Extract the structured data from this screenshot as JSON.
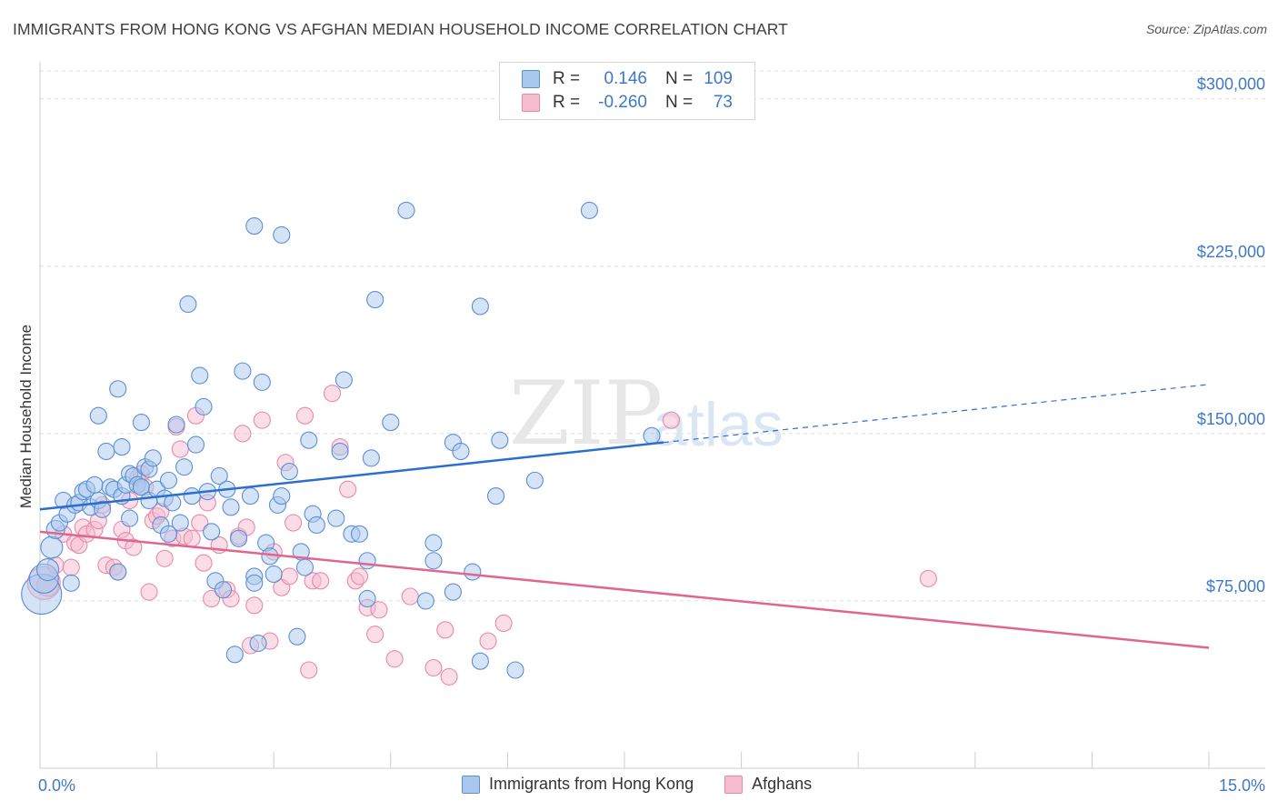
{
  "title": "IMMIGRANTS FROM HONG KONG VS AFGHAN MEDIAN HOUSEHOLD INCOME CORRELATION CHART",
  "source": "Source: ZipAtlas.com",
  "watermark": {
    "part1": "ZIP",
    "part2": "atlas"
  },
  "legend": {
    "rows": [
      {
        "r_label": "R =",
        "r_value": "0.146",
        "n_label": "N =",
        "n_value": "109"
      },
      {
        "r_label": "R =",
        "r_value": "-0.260",
        "n_label": "N =",
        "n_value": "73"
      }
    ]
  },
  "colors": {
    "blue_fill": "#a9c8ee",
    "blue_stroke": "#5b8fd6",
    "blue_line": "#2a6fcf",
    "pink_fill": "#f6bcd0",
    "pink_stroke": "#e889a8",
    "pink_line": "#e0658f",
    "grid": "#dddddd",
    "tick_text": "#3d78c9"
  },
  "chart_data": {
    "type": "scatter",
    "ylabel": "Median Household Income",
    "xlim": [
      0,
      15
    ],
    "ylim": [
      0,
      312500
    ],
    "x_tick_labels": [
      "0.0%",
      "15.0%"
    ],
    "y_ticks": [
      75000,
      150000,
      225000,
      300000
    ],
    "y_tick_labels": [
      "$75,000",
      "$150,000",
      "$225,000",
      "$300,000"
    ],
    "series": [
      {
        "name": "Immigrants from Hong Kong",
        "color": "#5b8fd6",
        "trend": {
          "x0": 0,
          "y0": 116000,
          "x1": 8.0,
          "y1": 146000,
          "dashed_to_x": 15.0,
          "dashed_to_y": 172000
        },
        "points": [
          [
            0.02,
            78000,
            22
          ],
          [
            0.05,
            85000,
            16
          ],
          [
            0.1,
            89000,
            12
          ],
          [
            0.15,
            99000,
            12
          ],
          [
            0.2,
            107000,
            10
          ],
          [
            0.25,
            110000,
            9
          ],
          [
            0.3,
            120000,
            9
          ],
          [
            0.35,
            114000,
            9
          ],
          [
            0.4,
            83000,
            9
          ],
          [
            0.45,
            118000,
            9
          ],
          [
            0.5,
            119000,
            9
          ],
          [
            0.55,
            124000,
            9
          ],
          [
            0.6,
            125000,
            9
          ],
          [
            0.65,
            117000,
            9
          ],
          [
            0.7,
            127000,
            9
          ],
          [
            0.75,
            120000,
            9
          ],
          [
            0.8,
            116000,
            9
          ],
          [
            0.85,
            142000,
            9
          ],
          [
            0.9,
            126000,
            9
          ],
          [
            0.95,
            125000,
            9
          ],
          [
            1.0,
            88000,
            9
          ],
          [
            1.05,
            122000,
            9
          ],
          [
            1.1,
            127000,
            9
          ],
          [
            1.15,
            112000,
            9
          ],
          [
            0.75,
            158000,
            9
          ],
          [
            1.0,
            170000,
            9
          ],
          [
            1.05,
            144000,
            9
          ],
          [
            1.15,
            132000,
            9
          ],
          [
            1.2,
            131000,
            9
          ],
          [
            1.25,
            127000,
            9
          ],
          [
            1.3,
            126000,
            9
          ],
          [
            1.35,
            135000,
            9
          ],
          [
            1.4,
            134000,
            9
          ],
          [
            1.3,
            126000,
            9
          ],
          [
            1.3,
            155000,
            9
          ],
          [
            1.4,
            120000,
            9
          ],
          [
            1.45,
            139000,
            9
          ],
          [
            1.5,
            125000,
            9
          ],
          [
            1.55,
            109000,
            9
          ],
          [
            1.6,
            121000,
            9
          ],
          [
            1.65,
            105000,
            9
          ],
          [
            1.65,
            129000,
            9
          ],
          [
            1.7,
            119000,
            9
          ],
          [
            1.75,
            154000,
            9
          ],
          [
            1.8,
            110000,
            9
          ],
          [
            1.85,
            135000,
            9
          ],
          [
            1.95,
            122000,
            9
          ],
          [
            1.9,
            208000,
            9
          ],
          [
            2.0,
            145000,
            9
          ],
          [
            2.05,
            176000,
            9
          ],
          [
            2.1,
            162000,
            9
          ],
          [
            2.15,
            124000,
            9
          ],
          [
            2.2,
            106000,
            9
          ],
          [
            2.25,
            84000,
            9
          ],
          [
            2.3,
            131000,
            9
          ],
          [
            2.35,
            80000,
            9
          ],
          [
            2.4,
            125000,
            9
          ],
          [
            2.45,
            117000,
            9
          ],
          [
            2.5,
            51000,
            9
          ],
          [
            2.55,
            103000,
            9
          ],
          [
            2.6,
            178000,
            9
          ],
          [
            2.7,
            122000,
            9
          ],
          [
            2.75,
            86000,
            9
          ],
          [
            2.75,
            83000,
            9
          ],
          [
            2.8,
            56000,
            9
          ],
          [
            2.85,
            173000,
            9
          ],
          [
            2.9,
            101000,
            9
          ],
          [
            2.95,
            95000,
            9
          ],
          [
            3.0,
            87000,
            9
          ],
          [
            3.05,
            118000,
            9
          ],
          [
            3.1,
            122000,
            9
          ],
          [
            3.2,
            133000,
            9
          ],
          [
            2.75,
            243000,
            9
          ],
          [
            3.3,
            59000,
            9
          ],
          [
            3.35,
            97000,
            9
          ],
          [
            3.4,
            90000,
            9
          ],
          [
            3.45,
            147000,
            9
          ],
          [
            3.5,
            114000,
            9
          ],
          [
            3.55,
            109000,
            9
          ],
          [
            3.1,
            239000,
            9
          ],
          [
            3.8,
            112000,
            9
          ],
          [
            3.85,
            142000,
            9
          ],
          [
            3.9,
            174000,
            9
          ],
          [
            4.0,
            105000,
            9
          ],
          [
            4.1,
            105000,
            9
          ],
          [
            4.2,
            93000,
            9
          ],
          [
            4.2,
            76000,
            9
          ],
          [
            4.25,
            139000,
            9
          ],
          [
            4.3,
            210000,
            9
          ],
          [
            4.5,
            155000,
            9
          ],
          [
            4.7,
            250000,
            9
          ],
          [
            4.95,
            75000,
            9
          ],
          [
            5.05,
            101000,
            9
          ],
          [
            5.05,
            93000,
            9
          ],
          [
            5.3,
            79000,
            9
          ],
          [
            5.3,
            146000,
            9
          ],
          [
            5.4,
            142000,
            9
          ],
          [
            5.55,
            88000,
            9
          ],
          [
            5.65,
            48000,
            9
          ],
          [
            5.65,
            207000,
            9
          ],
          [
            5.85,
            122000,
            9
          ],
          [
            5.9,
            147000,
            9
          ],
          [
            6.1,
            44000,
            9
          ],
          [
            6.35,
            129000,
            9
          ],
          [
            7.05,
            250000,
            9
          ],
          [
            7.85,
            149000,
            9
          ]
        ]
      },
      {
        "name": "Afghans",
        "color": "#e889a8",
        "trend": {
          "x0": 0,
          "y0": 106000,
          "x1": 15.0,
          "y1": 54000
        },
        "points": [
          [
            0.05,
            83000,
            18
          ],
          [
            0.1,
            82000,
            12
          ],
          [
            0.2,
            91000,
            9
          ],
          [
            0.3,
            105000,
            9
          ],
          [
            0.4,
            90000,
            9
          ],
          [
            0.45,
            101000,
            9
          ],
          [
            0.5,
            100000,
            9
          ],
          [
            0.55,
            108000,
            9
          ],
          [
            0.6,
            105000,
            9
          ],
          [
            0.7,
            107000,
            9
          ],
          [
            0.75,
            111000,
            9
          ],
          [
            0.8,
            118000,
            9
          ],
          [
            0.85,
            91000,
            9
          ],
          [
            0.95,
            90000,
            9
          ],
          [
            1.0,
            88000,
            9
          ],
          [
            1.05,
            107000,
            9
          ],
          [
            1.1,
            102000,
            9
          ],
          [
            1.15,
            120000,
            9
          ],
          [
            1.2,
            99000,
            9
          ],
          [
            1.25,
            130000,
            9
          ],
          [
            1.3,
            132000,
            9
          ],
          [
            1.35,
            126000,
            9
          ],
          [
            1.4,
            79000,
            9
          ],
          [
            1.45,
            111000,
            9
          ],
          [
            1.5,
            113000,
            9
          ],
          [
            1.55,
            115000,
            9
          ],
          [
            1.6,
            94000,
            9
          ],
          [
            1.7,
            103000,
            9
          ],
          [
            1.75,
            153000,
            9
          ],
          [
            1.8,
            143000,
            9
          ],
          [
            1.85,
            104000,
            9
          ],
          [
            1.95,
            103000,
            9
          ],
          [
            2.0,
            158000,
            9
          ],
          [
            2.05,
            110000,
            9
          ],
          [
            2.1,
            92000,
            9
          ],
          [
            2.15,
            119000,
            9
          ],
          [
            2.2,
            76000,
            9
          ],
          [
            2.3,
            100000,
            9
          ],
          [
            2.4,
            80000,
            9
          ],
          [
            2.45,
            76000,
            9
          ],
          [
            2.55,
            104000,
            9
          ],
          [
            2.6,
            150000,
            9
          ],
          [
            2.65,
            108000,
            9
          ],
          [
            2.7,
            55000,
            9
          ],
          [
            2.75,
            73000,
            9
          ],
          [
            2.85,
            156000,
            9
          ],
          [
            2.95,
            57000,
            9
          ],
          [
            3.0,
            97000,
            9
          ],
          [
            3.1,
            81000,
            9
          ],
          [
            3.15,
            137000,
            9
          ],
          [
            3.2,
            86000,
            9
          ],
          [
            3.25,
            110000,
            9
          ],
          [
            3.4,
            158000,
            9
          ],
          [
            3.45,
            44000,
            9
          ],
          [
            3.5,
            84000,
            9
          ],
          [
            3.6,
            84000,
            9
          ],
          [
            3.75,
            168000,
            9
          ],
          [
            3.85,
            144000,
            9
          ],
          [
            3.95,
            125000,
            9
          ],
          [
            4.05,
            84000,
            9
          ],
          [
            4.1,
            86000,
            9
          ],
          [
            4.2,
            72000,
            9
          ],
          [
            4.3,
            60000,
            9
          ],
          [
            4.35,
            71000,
            9
          ],
          [
            4.55,
            49000,
            9
          ],
          [
            4.75,
            77000,
            9
          ],
          [
            5.05,
            45000,
            9
          ],
          [
            5.2,
            62000,
            9
          ],
          [
            5.25,
            41000,
            9
          ],
          [
            5.75,
            57000,
            9
          ],
          [
            5.95,
            65000,
            9
          ],
          [
            8.1,
            156000,
            9
          ],
          [
            11.4,
            85000,
            9
          ]
        ]
      }
    ],
    "legend_position": "top-center",
    "grid": true
  }
}
